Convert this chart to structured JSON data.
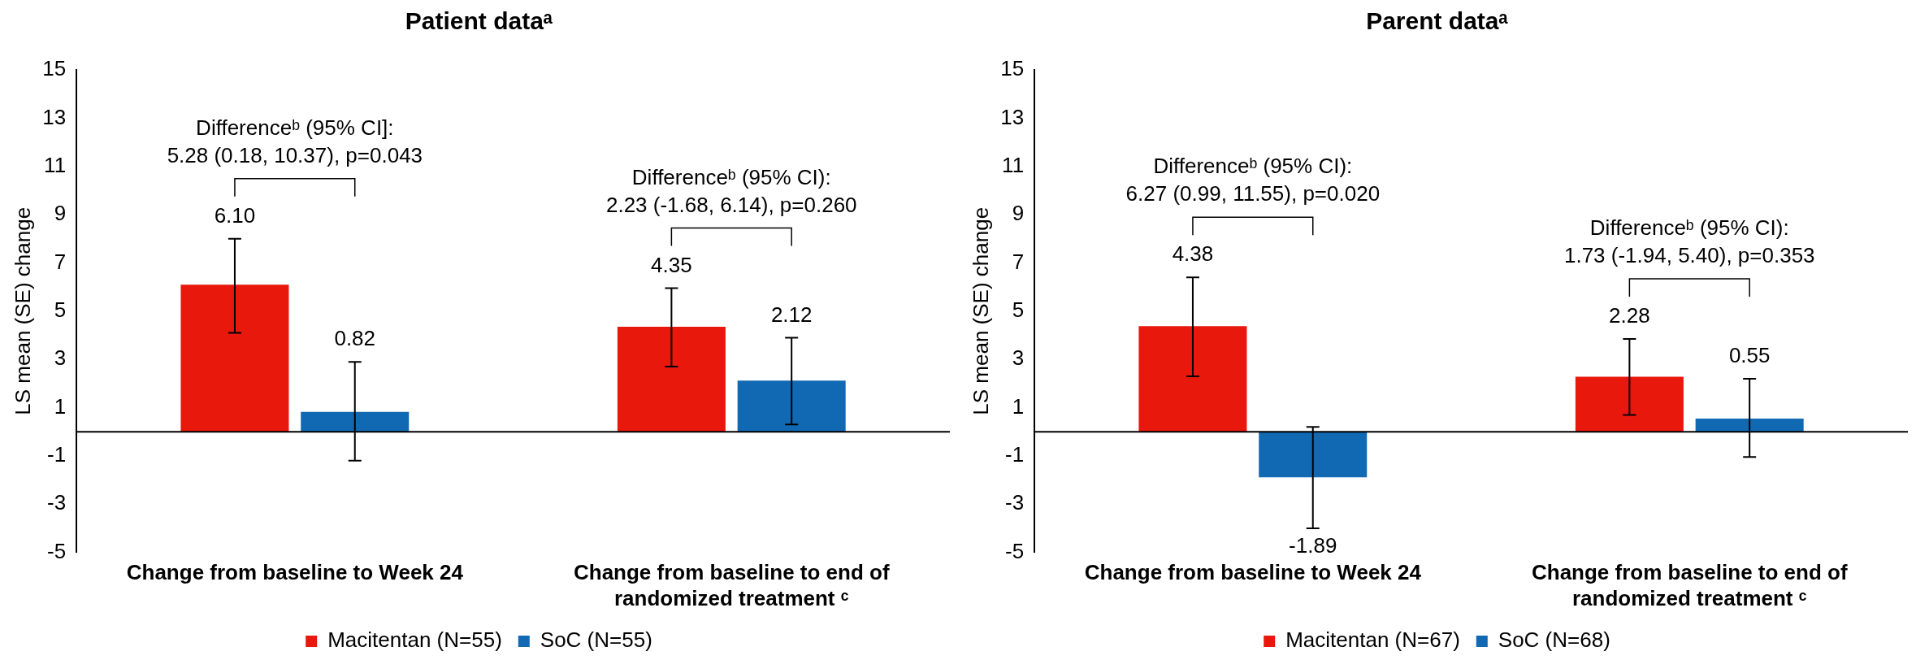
{
  "chart_data": [
    {
      "type": "bar",
      "title": "Patient dataᵃ",
      "ylabel": "LS mean (SE) change",
      "categories": [
        "Change from baseline to Week 24",
        "Change from baseline to end of randomized treatment ᶜ"
      ],
      "series": [
        {
          "name": "Macitentan (N=55)",
          "color": "#e8180c",
          "values": [
            6.1,
            4.35
          ],
          "errors": [
            [
              4.1,
              8.0
            ],
            [
              2.7,
              5.95
            ]
          ],
          "value_labels": [
            "6.10",
            "4.35"
          ]
        },
        {
          "name": "SoC (N=55)",
          "color": "#1269b3",
          "values": [
            0.82,
            2.12
          ],
          "errors": [
            [
              -1.2,
              2.9
            ],
            [
              0.3,
              3.9
            ]
          ],
          "value_labels": [
            "0.82",
            "2.12"
          ]
        }
      ],
      "ylim": [
        -5,
        15
      ],
      "yticks": [
        -5,
        -3,
        -1,
        1,
        3,
        5,
        7,
        9,
        11,
        13,
        15
      ],
      "legend": "bottom",
      "annotations": [
        "Differenceᵇ (95% CI]:\n5.28 (0.18, 10.37), p=0.043",
        "Differenceᵇ (95% CI):\n2.23 (-1.68, 6.14), p=0.260"
      ]
    },
    {
      "type": "bar",
      "title": "Parent dataᵃ",
      "ylabel": "LS mean (SE) change",
      "categories": [
        "Change from baseline to Week 24",
        "Change from baseline to end of randomized treatment ᶜ"
      ],
      "series": [
        {
          "name": "Macitentan (N=67)",
          "color": "#e8180c",
          "values": [
            4.38,
            2.28
          ],
          "errors": [
            [
              2.3,
              6.4
            ],
            [
              0.7,
              3.85
            ]
          ],
          "value_labels": [
            "4.38",
            "2.28"
          ]
        },
        {
          "name": "SoC (N=68)",
          "color": "#1269b3",
          "values": [
            -1.89,
            0.55
          ],
          "errors": [
            [
              -4.0,
              0.2
            ],
            [
              -1.05,
              2.2
            ]
          ],
          "value_labels": [
            "-1.89",
            "0.55"
          ]
        }
      ],
      "ylim": [
        -5,
        15
      ],
      "yticks": [
        -5,
        -3,
        -1,
        1,
        3,
        5,
        7,
        9,
        11,
        13,
        15
      ],
      "legend": "bottom",
      "annotations": [
        "Differenceᵇ (95% CI):\n6.27 (0.99, 11.55), p=0.020",
        "Differenceᵇ (95% CI):\n1.73 (-1.94, 5.40), p=0.353"
      ]
    }
  ]
}
